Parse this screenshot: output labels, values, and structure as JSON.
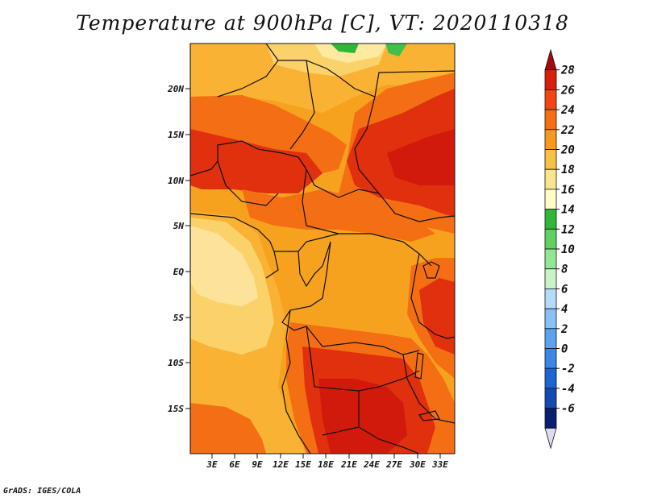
{
  "title": "Temperature at 900hPa [C], VT: 2020110318",
  "credit": "GrADS: IGES/COLA",
  "map": {
    "lat_labels": [
      "20N",
      "15N",
      "10N",
      "5N",
      "EQ",
      "5S",
      "10S",
      "15S"
    ],
    "lon_labels": [
      "3E",
      "6E",
      "9E",
      "12E",
      "15E",
      "18E",
      "21E",
      "24E",
      "27E",
      "30E",
      "33E"
    ]
  },
  "colorbar": {
    "labels": [
      "28",
      "26",
      "24",
      "22",
      "20",
      "18",
      "16",
      "14",
      "12",
      "10",
      "8",
      "6",
      "4",
      "2",
      "0",
      "-2",
      "-4",
      "-6"
    ],
    "colors": [
      "#a50a0a",
      "#d91e0e",
      "#f34510",
      "#f56f10",
      "#f79a1b",
      "#f9c144",
      "#fae48e",
      "#fefdc8",
      "#2fb838",
      "#60d060",
      "#93e693",
      "#c6f4c6",
      "#b4dcfa",
      "#87c1f5",
      "#5aa3ee",
      "#3a87e6",
      "#1e64d2",
      "#134ab4",
      "#0a1f70",
      "#dcdcf0"
    ]
  }
}
